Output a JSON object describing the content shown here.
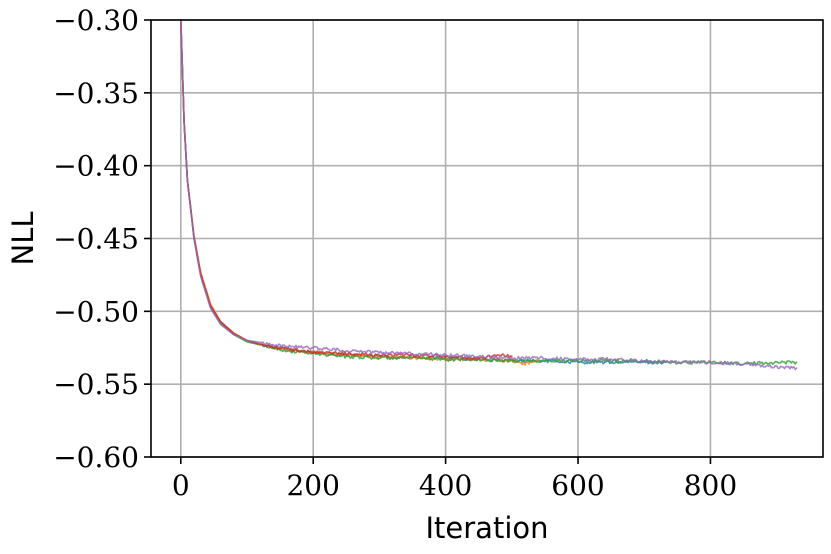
{
  "chart_data": {
    "type": "line",
    "title": "",
    "xlabel": "Iteration",
    "ylabel": "NLL",
    "xlim": [
      -45,
      970
    ],
    "ylim": [
      -0.6,
      -0.3
    ],
    "xticks": [
      0,
      200,
      400,
      600,
      800
    ],
    "xtick_labels": [
      "0",
      "200",
      "400",
      "600",
      "800"
    ],
    "yticks": [
      -0.3,
      -0.35,
      -0.4,
      -0.45,
      -0.5,
      -0.55,
      -0.6
    ],
    "ytick_labels": [
      "−0.30",
      "−0.35",
      "−0.40",
      "−0.45",
      "−0.50",
      "−0.55",
      "−0.60"
    ],
    "grid": true,
    "legend": "none",
    "series": [
      {
        "color": "#1f77b4",
        "x": [
          0,
          5,
          10,
          20,
          30,
          45,
          60,
          80,
          100,
          130,
          160,
          200,
          250,
          300,
          350,
          400,
          450,
          500,
          550,
          600,
          650,
          700,
          730
        ],
        "y": [
          -0.3,
          -0.37,
          -0.41,
          -0.45,
          -0.475,
          -0.497,
          -0.508,
          -0.516,
          -0.52,
          -0.524,
          -0.526,
          -0.528,
          -0.53,
          -0.531,
          -0.532,
          -0.532,
          -0.533,
          -0.534,
          -0.534,
          -0.535,
          -0.535,
          -0.535,
          -0.535
        ]
      },
      {
        "color": "#ff7f0e",
        "x": [
          0,
          5,
          10,
          20,
          30,
          45,
          60,
          80,
          100,
          130,
          160,
          200,
          250,
          300,
          350,
          400,
          450,
          500,
          520,
          540
        ],
        "y": [
          -0.3,
          -0.37,
          -0.41,
          -0.448,
          -0.473,
          -0.495,
          -0.507,
          -0.515,
          -0.52,
          -0.524,
          -0.526,
          -0.528,
          -0.53,
          -0.531,
          -0.532,
          -0.533,
          -0.533,
          -0.534,
          -0.536,
          -0.534
        ]
      },
      {
        "color": "#2ca02c",
        "x": [
          0,
          5,
          10,
          20,
          30,
          45,
          60,
          80,
          100,
          130,
          160,
          200,
          250,
          300,
          350,
          400,
          450,
          500,
          550,
          600,
          650,
          700,
          750,
          800,
          850,
          900,
          930
        ],
        "y": [
          -0.3,
          -0.37,
          -0.41,
          -0.45,
          -0.475,
          -0.497,
          -0.508,
          -0.516,
          -0.521,
          -0.524,
          -0.527,
          -0.529,
          -0.531,
          -0.532,
          -0.532,
          -0.533,
          -0.533,
          -0.534,
          -0.534,
          -0.534,
          -0.534,
          -0.534,
          -0.535,
          -0.535,
          -0.536,
          -0.535,
          -0.535
        ]
      },
      {
        "color": "#d62728",
        "x": [
          0,
          5,
          10,
          20,
          30,
          45,
          60,
          80,
          100,
          130,
          160,
          200,
          250,
          300,
          350,
          400,
          450,
          480,
          500
        ],
        "y": [
          -0.3,
          -0.37,
          -0.41,
          -0.449,
          -0.474,
          -0.496,
          -0.507,
          -0.515,
          -0.52,
          -0.524,
          -0.526,
          -0.528,
          -0.529,
          -0.53,
          -0.53,
          -0.531,
          -0.532,
          -0.53,
          -0.531
        ]
      },
      {
        "color": "#9467bd",
        "x": [
          0,
          5,
          10,
          20,
          30,
          45,
          60,
          80,
          100,
          130,
          160,
          200,
          250,
          300,
          350,
          400,
          450,
          500,
          550,
          600,
          650,
          700,
          750,
          800,
          850,
          900,
          930
        ],
        "y": [
          -0.3,
          -0.37,
          -0.41,
          -0.45,
          -0.476,
          -0.498,
          -0.509,
          -0.516,
          -0.52,
          -0.522,
          -0.524,
          -0.525,
          -0.527,
          -0.528,
          -0.529,
          -0.53,
          -0.531,
          -0.532,
          -0.532,
          -0.533,
          -0.533,
          -0.534,
          -0.535,
          -0.535,
          -0.536,
          -0.538,
          -0.539
        ]
      }
    ]
  }
}
